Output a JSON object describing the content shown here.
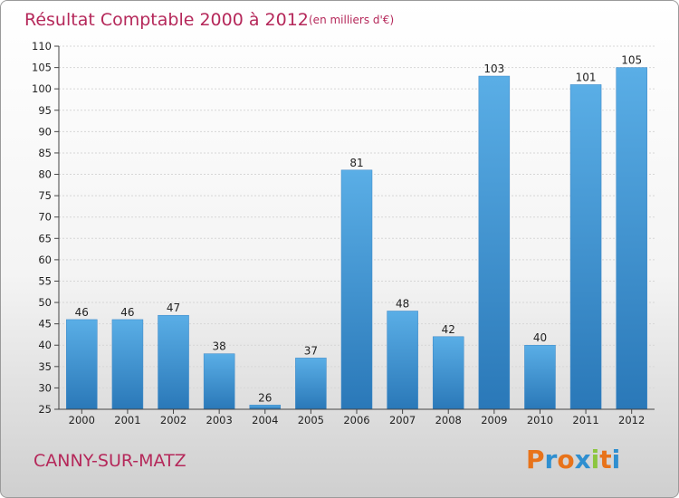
{
  "chart_data": {
    "type": "bar",
    "title": "Résultat Comptable 2000 à 2012",
    "subtitle": "(en milliers d'€)",
    "categories": [
      "2000",
      "2001",
      "2002",
      "2003",
      "2004",
      "2005",
      "2006",
      "2007",
      "2008",
      "2009",
      "2010",
      "2011",
      "2012"
    ],
    "values": [
      46,
      46,
      47,
      38,
      26,
      37,
      81,
      48,
      42,
      103,
      40,
      101,
      105
    ],
    "ylim": [
      25,
      110
    ],
    "yticks": [
      25,
      30,
      35,
      40,
      45,
      50,
      55,
      60,
      65,
      70,
      75,
      80,
      85,
      90,
      95,
      100,
      105,
      110
    ],
    "grid": true,
    "bar_color_top": "#5aaee6",
    "bar_color_bottom": "#2a78b8"
  },
  "footer": {
    "commune": "CANNY-SUR-MATZ",
    "logo_letters": [
      "P",
      "r",
      "o",
      "x",
      "i",
      "t",
      "i"
    ],
    "logo_colors": [
      "#e8731a",
      "#2f8fd0",
      "#e8731a",
      "#2f8fd0",
      "#8cc63f",
      "#e8731a",
      "#2f8fd0"
    ]
  }
}
